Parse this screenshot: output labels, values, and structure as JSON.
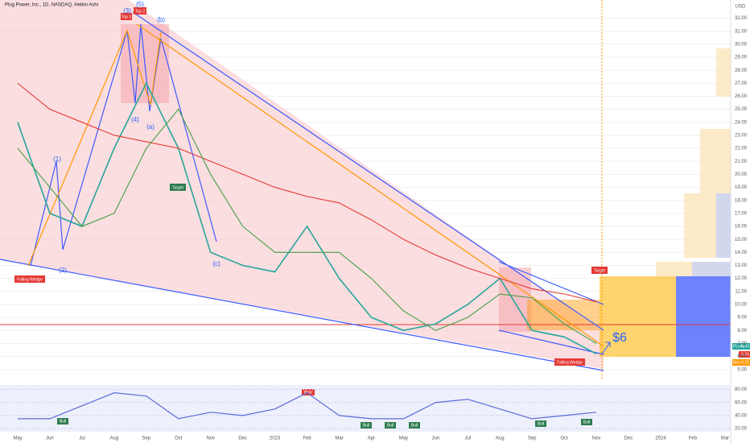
{
  "chart_data": {
    "type": "line",
    "title": "Plug Power, Inc., 1D, NASDAQ, Heikin Ashi",
    "currency": "USD",
    "categories": [
      "May",
      "Jun",
      "Jul",
      "Aug",
      "Sep",
      "Oct",
      "Nov",
      "Dec",
      "2023",
      "Feb",
      "Mar",
      "Apr",
      "May",
      "Jun",
      "Jul",
      "Aug",
      "Sep",
      "Oct",
      "Nov",
      "Dec",
      "2024",
      "Feb",
      "Mar"
    ],
    "series": [
      {
        "color": "#26a69a",
        "values": [
          24,
          17,
          16,
          22,
          27,
          22,
          14,
          13,
          12.5,
          16,
          12,
          9,
          8,
          8.5,
          10,
          12,
          8,
          7.5,
          6.2,
          null,
          null,
          null,
          null
        ]
      },
      {
        "color": "#e53935",
        "values": [
          27,
          25,
          24,
          23,
          22.5,
          22,
          21,
          20,
          19,
          18.3,
          17.8,
          16.5,
          15,
          13.8,
          12.8,
          12,
          11.2,
          10.8,
          10.2,
          null,
          null,
          null,
          null
        ]
      },
      {
        "color": "#43a047",
        "values": [
          22,
          19,
          16,
          17,
          22,
          25,
          20,
          16,
          14,
          14,
          14,
          12,
          9.5,
          8,
          9,
          10.8,
          10.5,
          8.5,
          7,
          null,
          null,
          null,
          null
        ]
      }
    ],
    "rsi": {
      "color": "#5b6bd6",
      "values": [
        35,
        35,
        55,
        75,
        70,
        35,
        45,
        40,
        50,
        75,
        40,
        35,
        35,
        60,
        65,
        50,
        35,
        40,
        45,
        null,
        null,
        null,
        null
      ]
    },
    "ylim": [
      4.3,
      33.4
    ],
    "yticks": [
      {
        "value": 5,
        "label": "5.00"
      },
      {
        "value": 6,
        "label": "6.00"
      },
      {
        "value": 7,
        "label": "7.00"
      },
      {
        "value": 8,
        "label": "8.00"
      },
      {
        "value": 9,
        "label": "9.00"
      },
      {
        "value": 10,
        "label": "10.00"
      },
      {
        "value": 11,
        "label": "11.00"
      },
      {
        "value": 12,
        "label": "12.00"
      },
      {
        "value": 13,
        "label": "13.00"
      },
      {
        "value": 14,
        "label": "14.00"
      },
      {
        "value": 15,
        "label": "15.00"
      },
      {
        "value": 16,
        "label": "16.00"
      },
      {
        "value": 17,
        "label": "17.00"
      },
      {
        "value": 18,
        "label": "18.00"
      },
      {
        "value": 19,
        "label": "19.00"
      },
      {
        "value": 20,
        "label": "20.00"
      },
      {
        "value": 21,
        "label": "21.00"
      },
      {
        "value": 22,
        "label": "22.00"
      },
      {
        "value": 23,
        "label": "23.00"
      },
      {
        "value": 24,
        "label": "24.00"
      },
      {
        "value": 25,
        "label": "25.00"
      },
      {
        "value": 26,
        "label": "26.00"
      },
      {
        "value": 27,
        "label": "27.00"
      },
      {
        "value": 28,
        "label": "28.00"
      },
      {
        "value": 29,
        "label": "29.00"
      },
      {
        "value": 30,
        "label": "30.00"
      },
      {
        "value": 31,
        "label": "31.00"
      },
      {
        "value": 32,
        "label": "32.00"
      }
    ],
    "rsi_ylim": [
      15,
      87
    ],
    "rsi_yticks": [
      {
        "value": 20,
        "label": "20.00"
      },
      {
        "value": 40,
        "label": "40.00"
      },
      {
        "value": 60,
        "label": "60.00"
      },
      {
        "value": 80,
        "label": "80.00"
      }
    ],
    "price_labels": {
      "symbol": "PLUG",
      "last": "6.43",
      "second": "6.26",
      "third_name": "Bev",
      "third": "6.25"
    },
    "annotations": {
      "top1": "Top 1",
      "top2": "Top 2",
      "w3": "(3)",
      "w5": "(5)",
      "wb": "(b)",
      "w4": "(4)",
      "wa": "(a)",
      "w1": "(1)",
      "w2": "(2)",
      "wc": "(c)",
      "target1": "Target",
      "wedge1": "Falling Wedge",
      "target2": "Target",
      "wedge2": "Falling Wedge",
      "six": "$6",
      "bull": "Bull",
      "bear": "Bear"
    }
  }
}
